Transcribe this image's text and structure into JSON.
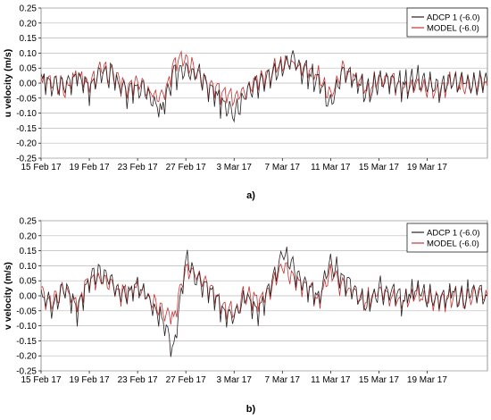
{
  "chart_data": [
    {
      "type": "line",
      "panel_label": "a)",
      "ylabel": "u velocity (m/s)",
      "xlabel": "",
      "ylim": [
        -0.25,
        0.25
      ],
      "yticks": [
        "0.25",
        "0.20",
        "0.15",
        "0.10",
        "0.05",
        "0.00",
        "-0.05",
        "-0.10",
        "-0.15",
        "-0.20",
        "-0.25"
      ],
      "x_range_days": [
        0,
        37
      ],
      "x_tick_labels": [
        "15 Feb 17",
        "19 Feb 17",
        "23 Feb 17",
        "27 Feb 17",
        "3 Mar 17",
        "7 Mar 17",
        "11 Mar 17",
        "15 Mar 17",
        "19 Mar 17"
      ],
      "x_tick_days": [
        0,
        4,
        8,
        12,
        16,
        20,
        24,
        28,
        32
      ],
      "grid": true,
      "legend_position": "top-right",
      "series": [
        {
          "name": "ADCP 1 (-6.0)",
          "color": "#2b2020",
          "x": [
            0,
            1,
            2,
            3,
            4,
            5,
            6,
            7,
            8,
            9,
            10,
            11,
            12,
            13,
            14,
            15,
            16,
            17,
            18,
            19,
            20,
            21,
            22,
            23,
            24,
            25,
            26,
            27,
            28,
            29,
            30,
            31,
            32,
            33,
            34,
            35,
            36,
            37
          ],
          "y": [
            0.01,
            0.0,
            -0.01,
            0.02,
            -0.02,
            0.04,
            0.02,
            -0.03,
            -0.01,
            -0.04,
            -0.1,
            0.03,
            0.05,
            0.03,
            -0.02,
            -0.07,
            -0.1,
            -0.04,
            0.0,
            0.02,
            0.05,
            0.07,
            0.04,
            0.0,
            -0.08,
            0.04,
            0.01,
            -0.03,
            0.0,
            0.02,
            -0.01,
            0.01,
            0.0,
            -0.02,
            0.01,
            0.0,
            0.01,
            0.0
          ]
        },
        {
          "name": "MODEL (-6.0)",
          "color": "#c83232",
          "x": [
            0,
            1,
            2,
            3,
            4,
            5,
            6,
            7,
            8,
            9,
            10,
            11,
            12,
            13,
            14,
            15,
            16,
            17,
            18,
            19,
            20,
            21,
            22,
            23,
            24,
            25,
            26,
            27,
            28,
            29,
            30,
            31,
            32,
            33,
            34,
            35,
            36,
            37
          ],
          "y": [
            0.0,
            0.01,
            -0.02,
            0.03,
            -0.01,
            0.05,
            0.03,
            -0.02,
            0.0,
            -0.03,
            -0.05,
            0.06,
            0.08,
            0.04,
            -0.01,
            -0.03,
            -0.05,
            -0.02,
            0.01,
            0.03,
            0.07,
            0.06,
            0.05,
            0.02,
            -0.04,
            0.05,
            0.02,
            -0.02,
            0.01,
            0.01,
            -0.02,
            0.0,
            -0.01,
            -0.03,
            0.0,
            -0.01,
            0.0,
            -0.01
          ]
        }
      ]
    },
    {
      "type": "line",
      "panel_label": "b)",
      "ylabel": "v velocity (m/s)",
      "xlabel": "",
      "ylim": [
        -0.25,
        0.25
      ],
      "yticks": [
        "0.25",
        "0.20",
        "0.15",
        "0.10",
        "0.05",
        "0.00",
        "-0.05",
        "-0.10",
        "-0.15",
        "-0.20",
        "-0.25"
      ],
      "x_range_days": [
        0,
        37
      ],
      "x_tick_labels": [
        "15 Feb 17",
        "19 Feb 17",
        "23 Feb 17",
        "27 Feb 17",
        "3 Mar 17",
        "7 Mar 17",
        "11 Mar 17",
        "15 Mar 17",
        "19 Mar 17"
      ],
      "x_tick_days": [
        0,
        4,
        8,
        12,
        16,
        20,
        24,
        28,
        32
      ],
      "grid": true,
      "legend_position": "top-right",
      "series": [
        {
          "name": "ADCP 1 (-6.0)",
          "color": "#2b2020",
          "x": [
            0,
            1,
            2,
            3,
            4,
            5,
            6,
            7,
            8,
            9,
            10,
            11,
            12,
            13,
            14,
            15,
            16,
            17,
            18,
            19,
            20,
            21,
            22,
            23,
            24,
            25,
            26,
            27,
            28,
            29,
            30,
            31,
            32,
            33,
            34,
            35,
            36,
            37
          ],
          "y": [
            0.0,
            -0.03,
            0.02,
            -0.05,
            0.05,
            0.08,
            0.03,
            0.0,
            0.04,
            -0.02,
            -0.08,
            -0.18,
            0.12,
            0.05,
            0.02,
            -0.05,
            -0.08,
            0.0,
            -0.05,
            0.03,
            0.14,
            0.08,
            0.04,
            -0.02,
            0.12,
            0.05,
            0.02,
            -0.03,
            0.02,
            0.01,
            -0.02,
            0.02,
            0.0,
            -0.02,
            0.01,
            -0.01,
            0.02,
            0.0
          ]
        },
        {
          "name": "MODEL (-6.0)",
          "color": "#c83232",
          "x": [
            0,
            1,
            2,
            3,
            4,
            5,
            6,
            7,
            8,
            9,
            10,
            11,
            12,
            13,
            14,
            15,
            16,
            17,
            18,
            19,
            20,
            21,
            22,
            23,
            24,
            25,
            26,
            27,
            28,
            29,
            30,
            31,
            32,
            33,
            34,
            35,
            36,
            37
          ],
          "y": [
            0.01,
            -0.02,
            0.03,
            -0.03,
            0.06,
            0.05,
            0.02,
            0.01,
            0.03,
            -0.01,
            -0.05,
            -0.08,
            0.1,
            0.06,
            0.03,
            -0.03,
            -0.05,
            0.01,
            -0.02,
            0.02,
            0.1,
            0.06,
            0.03,
            -0.01,
            0.08,
            0.03,
            0.01,
            -0.02,
            0.01,
            0.0,
            -0.02,
            0.01,
            -0.01,
            -0.02,
            0.0,
            -0.02,
            0.01,
            0.0
          ]
        }
      ]
    }
  ]
}
